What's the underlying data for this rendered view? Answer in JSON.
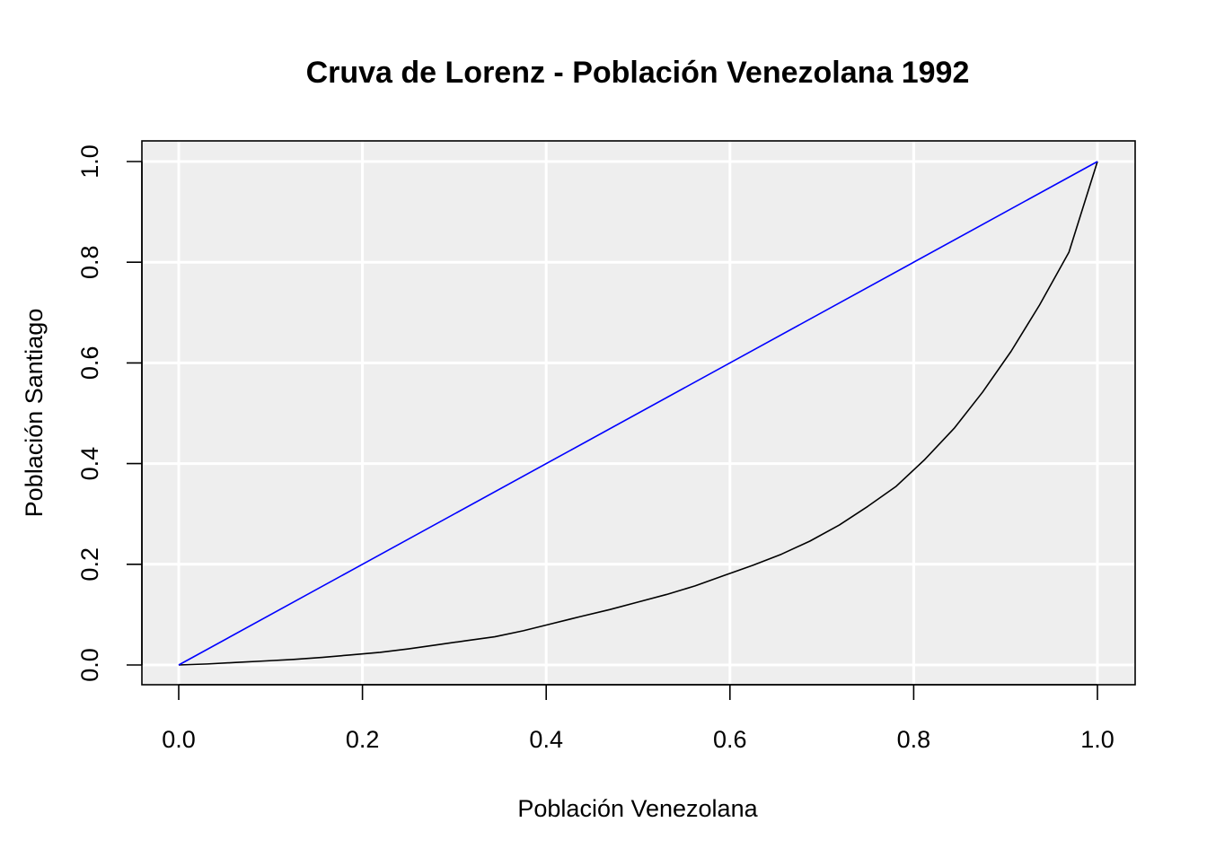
{
  "chart_data": {
    "type": "line",
    "title": "Cruva de Lorenz - Población Venezolana 1992",
    "xlabel": "Población Venezolana",
    "ylabel": "Población Santiago",
    "xlim": [
      0.0,
      1.0
    ],
    "ylim": [
      0.0,
      1.0
    ],
    "x_ticks": [
      "0.0",
      "0.2",
      "0.4",
      "0.6",
      "0.8",
      "1.0"
    ],
    "y_ticks": [
      "0.0",
      "0.2",
      "0.4",
      "0.6",
      "0.8",
      "1.0"
    ],
    "grid": true,
    "legend": "none",
    "colors": {
      "panel_background": "#eeeeee",
      "grid": "#ffffff",
      "lorenz_curve": "#000000",
      "equality_line": "#0000ff"
    },
    "series": [
      {
        "x": [
          0.0,
          0.031,
          0.062,
          0.094,
          0.125,
          0.156,
          0.187,
          0.219,
          0.25,
          0.281,
          0.312,
          0.344,
          0.375,
          0.406,
          0.437,
          0.469,
          0.5,
          0.531,
          0.562,
          0.594,
          0.625,
          0.656,
          0.687,
          0.719,
          0.75,
          0.781,
          0.812,
          0.844,
          0.875,
          0.906,
          0.937,
          0.969,
          1.0
        ],
        "y": [
          0.0,
          0.002,
          0.005,
          0.008,
          0.011,
          0.015,
          0.02,
          0.025,
          0.032,
          0.04,
          0.048,
          0.056,
          0.068,
          0.082,
          0.096,
          0.11,
          0.125,
          0.14,
          0.157,
          0.178,
          0.198,
          0.22,
          0.246,
          0.278,
          0.315,
          0.355,
          0.408,
          0.47,
          0.542,
          0.623,
          0.715,
          0.82,
          1.0
        ]
      },
      {
        "x": [
          0.0,
          1.0
        ],
        "y": [
          0.0,
          1.0
        ]
      }
    ]
  }
}
